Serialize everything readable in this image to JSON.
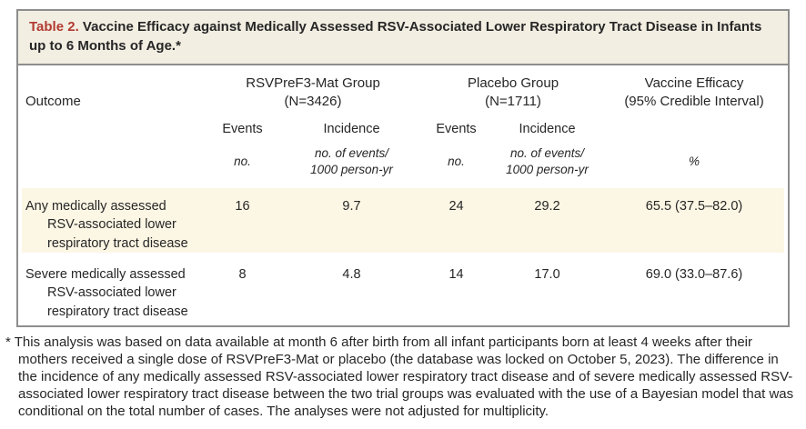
{
  "table": {
    "title_label": "Table 2.",
    "title_text": "Vaccine Efficacy against Medically Assessed RSV-Associated Lower Respiratory Tract Disease in Infants up to 6 Months of Age.*",
    "columns": {
      "outcome": "Outcome",
      "group1_name": "RSVPreF3-Mat Group",
      "group1_n": "(N=3426)",
      "group2_name": "Placebo Group",
      "group2_n": "(N=1711)",
      "efficacy_name": "Vaccine Efficacy",
      "efficacy_sub": "(95% Credible Interval)"
    },
    "subheaders": {
      "events": "Events",
      "incidence": "Incidence"
    },
    "units": {
      "events": "no.",
      "incidence_line1": "no. of events/",
      "incidence_line2": "1000 person-yr",
      "efficacy": "%"
    },
    "rows": [
      {
        "outcome": "Any medically assessed RSV-associated lower respiratory tract disease",
        "g1_events": "16",
        "g1_incidence": "9.7",
        "g2_events": "24",
        "g2_incidence": "29.2",
        "efficacy": "65.5 (37.5–82.0)"
      },
      {
        "outcome": "Severe medically assessed RSV-associated lower respiratory tract disease",
        "g1_events": "8",
        "g1_incidence": "4.8",
        "g2_events": "14",
        "g2_incidence": "17.0",
        "efficacy": "69.0 (33.0–87.6)"
      }
    ]
  },
  "footnote": {
    "marker": "*",
    "text": "This analysis was based on data available at month 6 after birth from all infant participants born at least 4 weeks after their mothers received a single dose of RSVPreF3-Mat or placebo (the database was locked on October 5, 2023). The difference in the incidence of any medically assessed RSV-associated lower respiratory tract disease and of severe medically assessed RSV-associated lower respiratory tract disease between the two trial groups was evaluated with the use of a Bayesian model that was conditional on the total number of cases. The analyses were not adjusted for multiplicity."
  },
  "colors": {
    "accent_red": "#b23a31",
    "title_band_bg": "#f2eee2",
    "highlight_row_bg": "#fcf6e4",
    "border_gray": "#8e8e8e"
  },
  "chart_data": {
    "type": "table",
    "title": "Vaccine Efficacy against Medically Assessed RSV-Associated Lower Respiratory Tract Disease in Infants up to 6 Months of Age",
    "columns": [
      "Outcome",
      "RSVPreF3-Mat Group (N=3426) Events no.",
      "RSVPreF3-Mat Group (N=3426) Incidence no. of events/1000 person-yr",
      "Placebo Group (N=1711) Events no.",
      "Placebo Group (N=1711) Incidence no. of events/1000 person-yr",
      "Vaccine Efficacy % (95% Credible Interval)"
    ],
    "rows": [
      [
        "Any medically assessed RSV-associated lower respiratory tract disease",
        16,
        9.7,
        24,
        29.2,
        "65.5 (37.5–82.0)"
      ],
      [
        "Severe medically assessed RSV-associated lower respiratory tract disease",
        8,
        4.8,
        14,
        17.0,
        "69.0 (33.0–87.6)"
      ]
    ]
  }
}
